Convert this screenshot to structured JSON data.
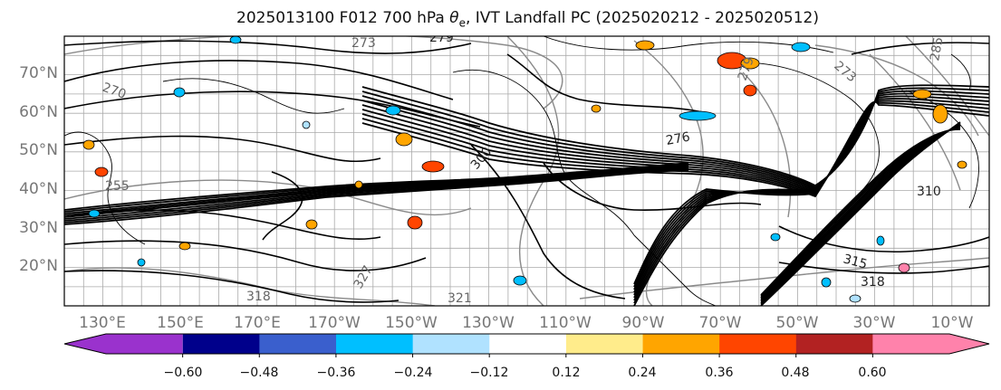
{
  "title": {
    "prefix": "2025013100 F012 700 hPa ",
    "symbol": "θ",
    "subscript": "e",
    "suffix": ", IVT Landfall PC (2025020212 - 2025020512)"
  },
  "map": {
    "lon_labels": [
      "130°E",
      "150°E",
      "170°E",
      "170°W",
      "150°W",
      "130°W",
      "110°W",
      "90°W",
      "70°W",
      "50°W",
      "30°W",
      "10°W"
    ],
    "lat_labels": [
      "70°N",
      "60°N",
      "50°N",
      "40°N",
      "30°N",
      "20°N"
    ],
    "contour_labels": [
      "273",
      "279",
      "270",
      "255",
      "300",
      "279",
      "276",
      "327",
      "321",
      "318",
      "315",
      "310",
      "318",
      "285",
      "273"
    ],
    "land_color": "#ffffff",
    "contour_color": "#000000",
    "gray_contour_color": "#888888",
    "grid_color": "#999999"
  },
  "colorbar": {
    "tick_labels": [
      "−0.60",
      "−0.48",
      "−0.36",
      "−0.24",
      "−0.12",
      "0.12",
      "0.24",
      "0.36",
      "0.48",
      "0.60"
    ],
    "colors": [
      "#9a32cd",
      "#00008b",
      "#3a5fcd",
      "#00bfff",
      "#b0e2ff",
      "#ffffff",
      "#ffec8b",
      "#ffa500",
      "#ff4500",
      "#b22222",
      "#ff82ab"
    ]
  }
}
